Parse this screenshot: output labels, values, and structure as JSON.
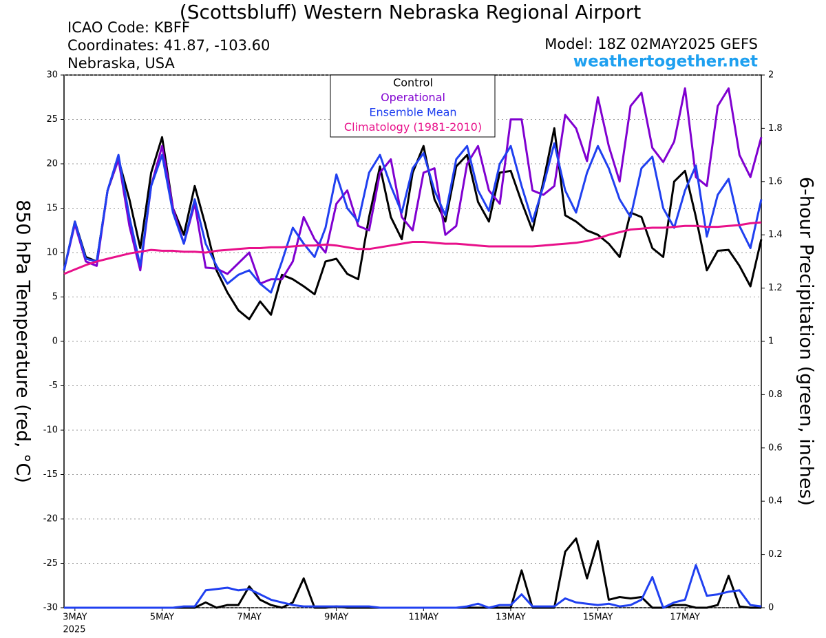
{
  "chart_data": {
    "type": "line",
    "title": "(Scottsbluff) Western Nebraska Regional Airport",
    "info_lines": [
      "ICAO Code: KBFF",
      "Coordinates: 41.87, -103.60",
      "Nebraska, USA"
    ],
    "model": "Model: 18Z 02MAY2025 GEFS",
    "source": "weathertogether.net",
    "y_label": "850 hPa Temperature (red, °C)",
    "y2_label": "6-hour Precipitation (green, inches)",
    "x_sublabel": "2025",
    "xlim": [
      2.75,
      18.75
    ],
    "xticks": [
      {
        "value": 3,
        "label": "3MAY"
      },
      {
        "value": 5,
        "label": "5MAY"
      },
      {
        "value": 7,
        "label": "7MAY"
      },
      {
        "value": 9,
        "label": "9MAY"
      },
      {
        "value": 11,
        "label": "11MAY"
      },
      {
        "value": 13,
        "label": "13MAY"
      },
      {
        "value": 15,
        "label": "15MAY"
      },
      {
        "value": 17,
        "label": "17MAY"
      }
    ],
    "ylim": [
      -30,
      30
    ],
    "yticks": [
      30,
      25,
      20,
      15,
      10,
      5,
      0,
      -5,
      -10,
      -15,
      -20,
      -25,
      -30
    ],
    "y2lim": [
      0,
      2
    ],
    "y2ticks": [
      0,
      0.2,
      0.4,
      0.6,
      0.8,
      1,
      1.2,
      1.4,
      1.6,
      1.8,
      2
    ],
    "grid": true,
    "x": [
      2.75,
      3,
      3.25,
      3.5,
      3.75,
      4,
      4.25,
      4.5,
      4.75,
      5,
      5.25,
      5.5,
      5.75,
      6,
      6.25,
      6.5,
      6.75,
      7,
      7.25,
      7.5,
      7.75,
      8,
      8.25,
      8.5,
      8.75,
      9,
      9.25,
      9.5,
      9.75,
      10,
      10.25,
      10.5,
      10.75,
      11,
      11.25,
      11.5,
      11.75,
      12,
      12.25,
      12.5,
      12.75,
      13,
      13.25,
      13.5,
      13.75,
      14,
      14.25,
      14.5,
      14.75,
      15,
      15.25,
      15.5,
      15.75,
      16,
      16.25,
      16.5,
      16.75,
      17,
      17.25,
      17.5,
      17.75,
      18,
      18.25,
      18.5,
      18.75
    ],
    "series": [
      {
        "name": "Control",
        "color": "#000000",
        "values": [
          8,
          13.5,
          9.5,
          9,
          17,
          20.5,
          16,
          10.5,
          19,
          23,
          15,
          12,
          17.5,
          13,
          8,
          5.5,
          3.5,
          2.5,
          4.5,
          3,
          7.5,
          7,
          6.2,
          5.3,
          9,
          9.3,
          7.6,
          7,
          14,
          19.7,
          14,
          11.5,
          19,
          22,
          16,
          13.5,
          19.7,
          21,
          15.7,
          13.5,
          19,
          19.2,
          15.7,
          12.5,
          18,
          24,
          14.2,
          13.5,
          12.5,
          12,
          11,
          9.5,
          14.5,
          14,
          10.5,
          9.5,
          18,
          19.2,
          14,
          8,
          10.2,
          10.3,
          8.5,
          6.2,
          11.5
        ]
      },
      {
        "name": "Operational",
        "color": "#8000d0",
        "values": [
          8,
          13.2,
          9,
          8.5,
          17,
          20.5,
          13,
          8,
          17.5,
          22,
          15,
          11,
          15.5,
          8.3,
          8.2,
          7.6,
          8.8,
          10,
          6.5,
          7,
          7,
          9,
          14,
          11.5,
          10,
          15.5,
          17,
          13,
          12.5,
          19,
          20.5,
          14,
          12.5,
          19,
          19.5,
          12,
          13,
          20,
          22,
          17,
          15.5,
          25,
          25,
          17,
          16.5,
          17.5,
          25.5,
          24,
          20.3,
          27.5,
          22,
          18,
          26.5,
          28,
          21.8,
          20.2,
          22.5,
          28.5,
          18.5,
          17.5,
          26.5,
          28.5,
          21,
          18.5,
          23
        ]
      },
      {
        "name": "Ensemble Mean",
        "color": "#2040f0",
        "values": [
          8,
          13.5,
          9.3,
          9,
          17,
          21,
          14,
          8.5,
          17.5,
          21,
          14.5,
          11,
          16,
          11,
          8.5,
          6.5,
          7.5,
          8,
          6.5,
          5.5,
          9,
          12.8,
          11,
          9.5,
          12.8,
          18.8,
          15,
          13.5,
          19,
          21,
          17.5,
          14.5,
          19.5,
          21.2,
          17,
          14.2,
          20.5,
          22,
          17,
          14.7,
          20,
          22,
          17.5,
          13.5,
          17.5,
          22.3,
          17,
          14.5,
          19,
          22,
          19.5,
          16,
          14,
          19.5,
          20.8,
          15,
          12.8,
          17,
          19.8,
          11.8,
          16.5,
          18.3,
          13,
          10.5,
          16
        ]
      },
      {
        "name": "Climatology (1981-2010)",
        "color": "#e8108a",
        "values": [
          7.6,
          8.1,
          8.6,
          9,
          9.3,
          9.6,
          9.9,
          10.1,
          10.3,
          10.2,
          10.2,
          10.1,
          10.1,
          10,
          10.2,
          10.3,
          10.4,
          10.5,
          10.5,
          10.6,
          10.6,
          10.7,
          10.8,
          10.8,
          10.9,
          10.8,
          10.6,
          10.4,
          10.4,
          10.6,
          10.8,
          11,
          11.2,
          11.2,
          11.1,
          11,
          11,
          10.9,
          10.8,
          10.7,
          10.7,
          10.7,
          10.7,
          10.7,
          10.8,
          10.9,
          11,
          11.1,
          11.3,
          11.6,
          12,
          12.3,
          12.6,
          12.7,
          12.8,
          12.8,
          12.9,
          13,
          13,
          12.9,
          12.9,
          13,
          13.1,
          13.3,
          13.4
        ]
      },
      {
        "color": "#000000",
        "axis": "y2",
        "values": [
          0,
          0,
          0,
          0,
          0,
          0,
          0,
          0,
          0,
          0,
          0,
          0,
          0,
          0.02,
          0,
          0.01,
          0.01,
          0.08,
          0.03,
          0.01,
          0,
          0.02,
          0.11,
          0,
          0,
          0.005,
          0,
          0,
          0,
          0,
          0,
          0,
          0,
          0,
          0,
          0,
          0,
          0,
          0,
          0,
          0,
          0,
          0.14,
          0,
          0,
          0,
          0.21,
          0.26,
          0.11,
          0.25,
          0.03,
          0.04,
          0.035,
          0.04,
          0,
          0,
          0.01,
          0.01,
          0,
          0,
          0.01,
          0.12,
          0.005,
          0,
          0
        ]
      },
      {
        "color": "#2040f0",
        "axis": "y2",
        "values": [
          0,
          0,
          0,
          0,
          0,
          0,
          0,
          0,
          0,
          0,
          0,
          0.005,
          0.005,
          0.065,
          0.07,
          0.075,
          0.065,
          0.07,
          0.05,
          0.03,
          0.02,
          0.01,
          0.005,
          0.005,
          0.005,
          0.005,
          0.005,
          0.005,
          0.005,
          0,
          0,
          0,
          0,
          0,
          0,
          0,
          0,
          0.005,
          0.015,
          0,
          0.01,
          0.01,
          0.05,
          0.005,
          0.005,
          0.005,
          0.035,
          0.02,
          0.015,
          0.01,
          0.015,
          0.005,
          0.01,
          0.03,
          0.115,
          0,
          0.02,
          0.03,
          0.16,
          0.045,
          0.05,
          0.06,
          0.065,
          0.01,
          0.005
        ]
      }
    ]
  }
}
